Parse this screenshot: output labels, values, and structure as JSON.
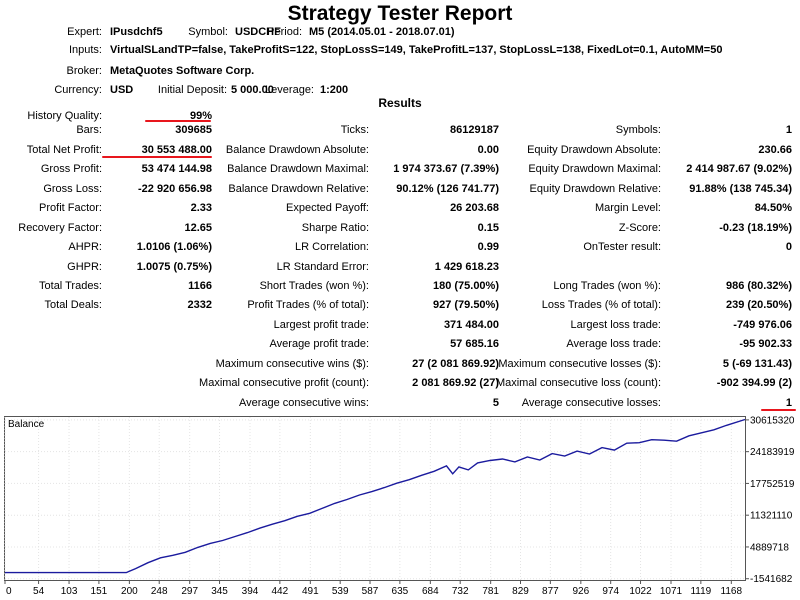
{
  "title": "Strategy Tester Report",
  "header": {
    "expert_label": "Expert:",
    "expert": "IPusdchf5",
    "symbol_label": "Symbol:",
    "symbol": "USDCHF",
    "period_label": "Period:",
    "period": "M5 (2014.05.01 - 2018.07.01)",
    "inputs_label": "Inputs:",
    "inputs": "VirtualSLandTP=false, TakeProfitS=122, StopLossS=149, TakeProfitL=137, StopLossL=138, FixedLot=0.1, AutoMM=50",
    "broker_label": "Broker:",
    "broker": "MetaQuotes Software Corp.",
    "currency_label": "Currency:",
    "currency": "USD",
    "deposit_label": "Initial Deposit:",
    "deposit": "5 000.00",
    "leverage_label": "Leverage:",
    "leverage": "1:200"
  },
  "results_heading": "Results",
  "col1": [
    {
      "label": "History Quality:",
      "value": "99%"
    },
    {
      "label": "Bars:",
      "value": "309685"
    },
    {
      "label": "Total Net Profit:",
      "value": "30 553 488.00"
    },
    {
      "label": "Gross Profit:",
      "value": "53 474 144.98"
    },
    {
      "label": "Gross Loss:",
      "value": "-22 920 656.98"
    },
    {
      "label": "Profit Factor:",
      "value": "2.33"
    },
    {
      "label": "Recovery Factor:",
      "value": "12.65"
    },
    {
      "label": "AHPR:",
      "value": "1.0106 (1.06%)"
    },
    {
      "label": "GHPR:",
      "value": "1.0075 (0.75%)"
    },
    {
      "label": "Total Trades:",
      "value": "1166"
    },
    {
      "label": "Total Deals:",
      "value": "2332"
    }
  ],
  "col2": [
    {
      "label": "Ticks:",
      "value": "86129187"
    },
    {
      "label": "Balance Drawdown Absolute:",
      "value": "0.00"
    },
    {
      "label": "Balance Drawdown Maximal:",
      "value": "1 974 373.67 (7.39%)"
    },
    {
      "label": "Balance Drawdown Relative:",
      "value": "90.12% (126 741.77)"
    },
    {
      "label": "Expected Payoff:",
      "value": "26 203.68"
    },
    {
      "label": "Sharpe Ratio:",
      "value": "0.15"
    },
    {
      "label": "LR Correlation:",
      "value": "0.99"
    },
    {
      "label": "LR Standard Error:",
      "value": "1 429 618.23"
    },
    {
      "label": "Short Trades (won %):",
      "value": "180 (75.00%)"
    },
    {
      "label": "Profit Trades (% of total):",
      "value": "927 (79.50%)"
    },
    {
      "label": "Largest profit trade:",
      "value": "371 484.00"
    },
    {
      "label": "Average profit trade:",
      "value": "57 685.16"
    },
    {
      "label": "Maximum consecutive wins ($):",
      "value": "27 (2 081 869.92)"
    },
    {
      "label": "Maximal consecutive profit (count):",
      "value": "2 081 869.92 (27)"
    },
    {
      "label": "Average consecutive wins:",
      "value": "5"
    }
  ],
  "col3": [
    {
      "label": "Symbols:",
      "value": "1"
    },
    {
      "label": "Equity Drawdown Absolute:",
      "value": "230.66"
    },
    {
      "label": "Equity Drawdown Maximal:",
      "value": "2 414 987.67 (9.02%)"
    },
    {
      "label": "Equity Drawdown Relative:",
      "value": "91.88% (138 745.34)"
    },
    {
      "label": "Margin Level:",
      "value": "84.50%"
    },
    {
      "label": "Z-Score:",
      "value": "-0.23 (18.19%)"
    },
    {
      "label": "OnTester result:",
      "value": "0"
    },
    {
      "label": "Long Trades (won %):",
      "value": "986 (80.32%)"
    },
    {
      "label": "Loss Trades (% of total):",
      "value": "239 (20.50%)"
    },
    {
      "label": "Largest loss trade:",
      "value": "-749 976.06"
    },
    {
      "label": "Average loss trade:",
      "value": "-95 902.33"
    },
    {
      "label": "Maximum consecutive losses ($):",
      "value": "5 (-69 131.43)"
    },
    {
      "label": "Maximal consecutive loss (count):",
      "value": "-902 394.99 (2)"
    },
    {
      "label": "Average consecutive losses:",
      "value": "1"
    }
  ],
  "colors": {
    "highlight": "#e8161d",
    "balance_line": "#1b1b9e"
  },
  "chart_data": {
    "type": "line",
    "title": "Balance",
    "x_ticks": [
      0,
      54,
      103,
      151,
      200,
      248,
      297,
      345,
      394,
      442,
      491,
      539,
      587,
      635,
      684,
      732,
      781,
      829,
      877,
      926,
      974,
      1022,
      1071,
      1119,
      1168
    ],
    "y_ticks": [
      -1541682,
      4889718,
      11321110,
      17752519,
      24183919,
      30615320
    ],
    "xlim": [
      0,
      1190
    ],
    "ylim": [
      -1800000,
      31200000
    ],
    "series": [
      {
        "x": [
          0,
          30,
          60,
          100,
          140,
          170,
          195,
          210,
          230,
          250,
          270,
          290,
          310,
          330,
          350,
          370,
          390,
          410,
          430,
          450,
          470,
          490,
          510,
          530,
          550,
          570,
          590,
          610,
          630,
          650,
          670,
          690,
          710,
          720,
          730,
          745,
          760,
          780,
          800,
          820,
          840,
          860,
          880,
          900,
          920,
          940,
          960,
          980,
          1000,
          1020,
          1040,
          1060,
          1080,
          1100,
          1120,
          1140,
          1160,
          1190
        ],
        "y": [
          -300000,
          -300000,
          -300000,
          -300000,
          -300000,
          -300000,
          -300000,
          500000,
          1700000,
          2700000,
          3200000,
          3800000,
          4800000,
          5600000,
          6200000,
          7000000,
          7800000,
          8700000,
          9500000,
          10200000,
          11100000,
          11700000,
          12700000,
          13700000,
          14500000,
          15400000,
          16100000,
          16900000,
          17800000,
          18500000,
          19400000,
          20200000,
          21300000,
          19700000,
          21100000,
          20500000,
          21900000,
          22400000,
          22700000,
          22100000,
          23100000,
          22500000,
          23800000,
          23300000,
          24300000,
          23700000,
          25000000,
          24500000,
          25900000,
          26000000,
          26600000,
          26500000,
          26300000,
          27400000,
          28000000,
          28600000,
          29500000,
          30700000
        ]
      }
    ]
  }
}
